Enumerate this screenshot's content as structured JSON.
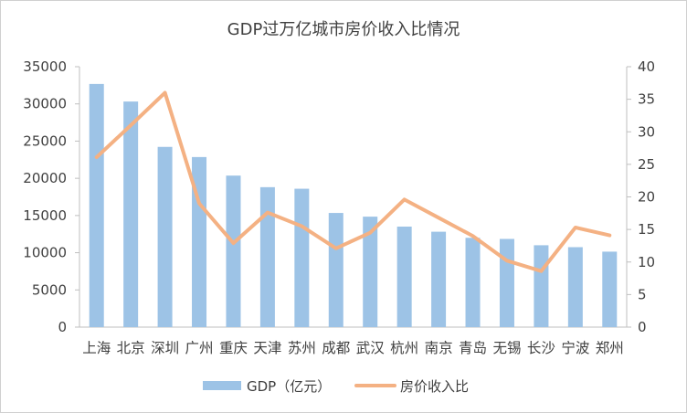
{
  "chart_data": {
    "type": "bar+line",
    "title": "GDP过万亿城市房价收入比情况",
    "categories": [
      "上海",
      "北京",
      "深圳",
      "广州",
      "重庆",
      "天津",
      "苏州",
      "成都",
      "武汉",
      "杭州",
      "南京",
      "青岛",
      "无锡",
      "长沙",
      "宁波",
      "郑州"
    ],
    "series": [
      {
        "name": "GDP（亿元）",
        "type": "bar",
        "axis": "left",
        "color": "#9dc3e6",
        "values": [
          32680,
          30320,
          24222,
          22859,
          20363,
          18809,
          18597,
          15343,
          14847,
          13509,
          12820,
          12002,
          11852,
          11003,
          10746,
          10143
        ]
      },
      {
        "name": "房价收入比",
        "type": "line",
        "axis": "right",
        "color": "#f4b183",
        "values": [
          26.1,
          31.0,
          36.0,
          19.0,
          12.9,
          17.6,
          15.5,
          12.1,
          14.5,
          19.6,
          16.8,
          14.0,
          10.2,
          8.6,
          15.3,
          14.1
        ]
      }
    ],
    "y_left": {
      "min": 0,
      "max": 35000,
      "ticks": [
        0,
        5000,
        10000,
        15000,
        20000,
        25000,
        30000,
        35000
      ]
    },
    "y_right": {
      "min": 0,
      "max": 40,
      "ticks": [
        0,
        5,
        10,
        15,
        20,
        25,
        30,
        35,
        40
      ]
    },
    "grid": false,
    "legend_position": "bottom"
  }
}
